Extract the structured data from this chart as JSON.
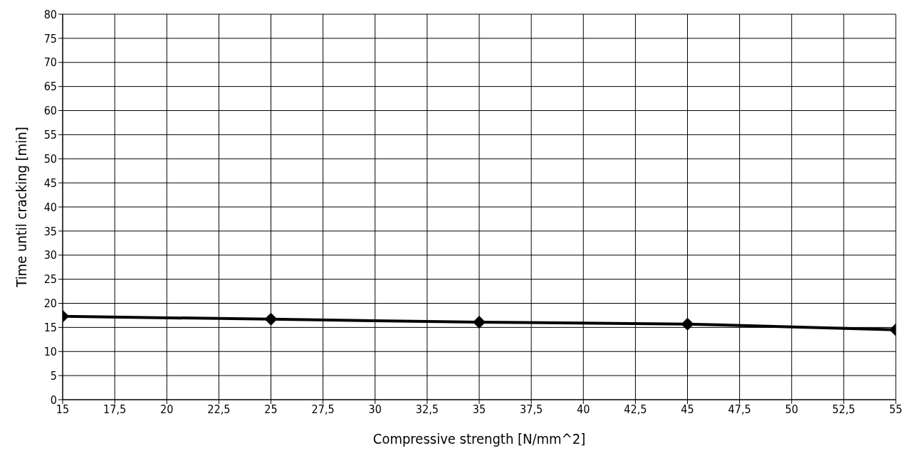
{
  "chart_data": {
    "type": "line",
    "xlabel": "Compressive strength [N/mm^2]",
    "ylabel": "Time until cracking [min]",
    "x": [
      15,
      25,
      35,
      45,
      55
    ],
    "series": [
      {
        "color": "#000000",
        "values": [
          17.3,
          16.7,
          16.1,
          15.7,
          14.5
        ]
      }
    ],
    "xlim": [
      15,
      55
    ],
    "xticks": [
      15,
      {
        "value": 17.5,
        "label": "17,5"
      },
      20,
      {
        "value": 22.5,
        "label": "22,5"
      },
      25,
      {
        "value": 27.5,
        "label": "27,5"
      },
      30,
      {
        "value": 32.5,
        "label": "32,5"
      },
      35,
      {
        "value": 37.5,
        "label": "37,5"
      },
      40,
      {
        "value": 42.5,
        "label": "42,5"
      },
      45,
      {
        "value": 47.5,
        "label": "47,5"
      },
      50,
      {
        "value": 52.5,
        "label": "52,5"
      },
      55
    ],
    "ylim": [
      0,
      80
    ],
    "yticks": [
      0,
      5,
      10,
      15,
      20,
      25,
      30,
      35,
      40,
      45,
      50,
      55,
      60,
      65,
      70,
      75,
      80
    ],
    "grid": true,
    "marker": "diamond",
    "line_style": "solid"
  }
}
